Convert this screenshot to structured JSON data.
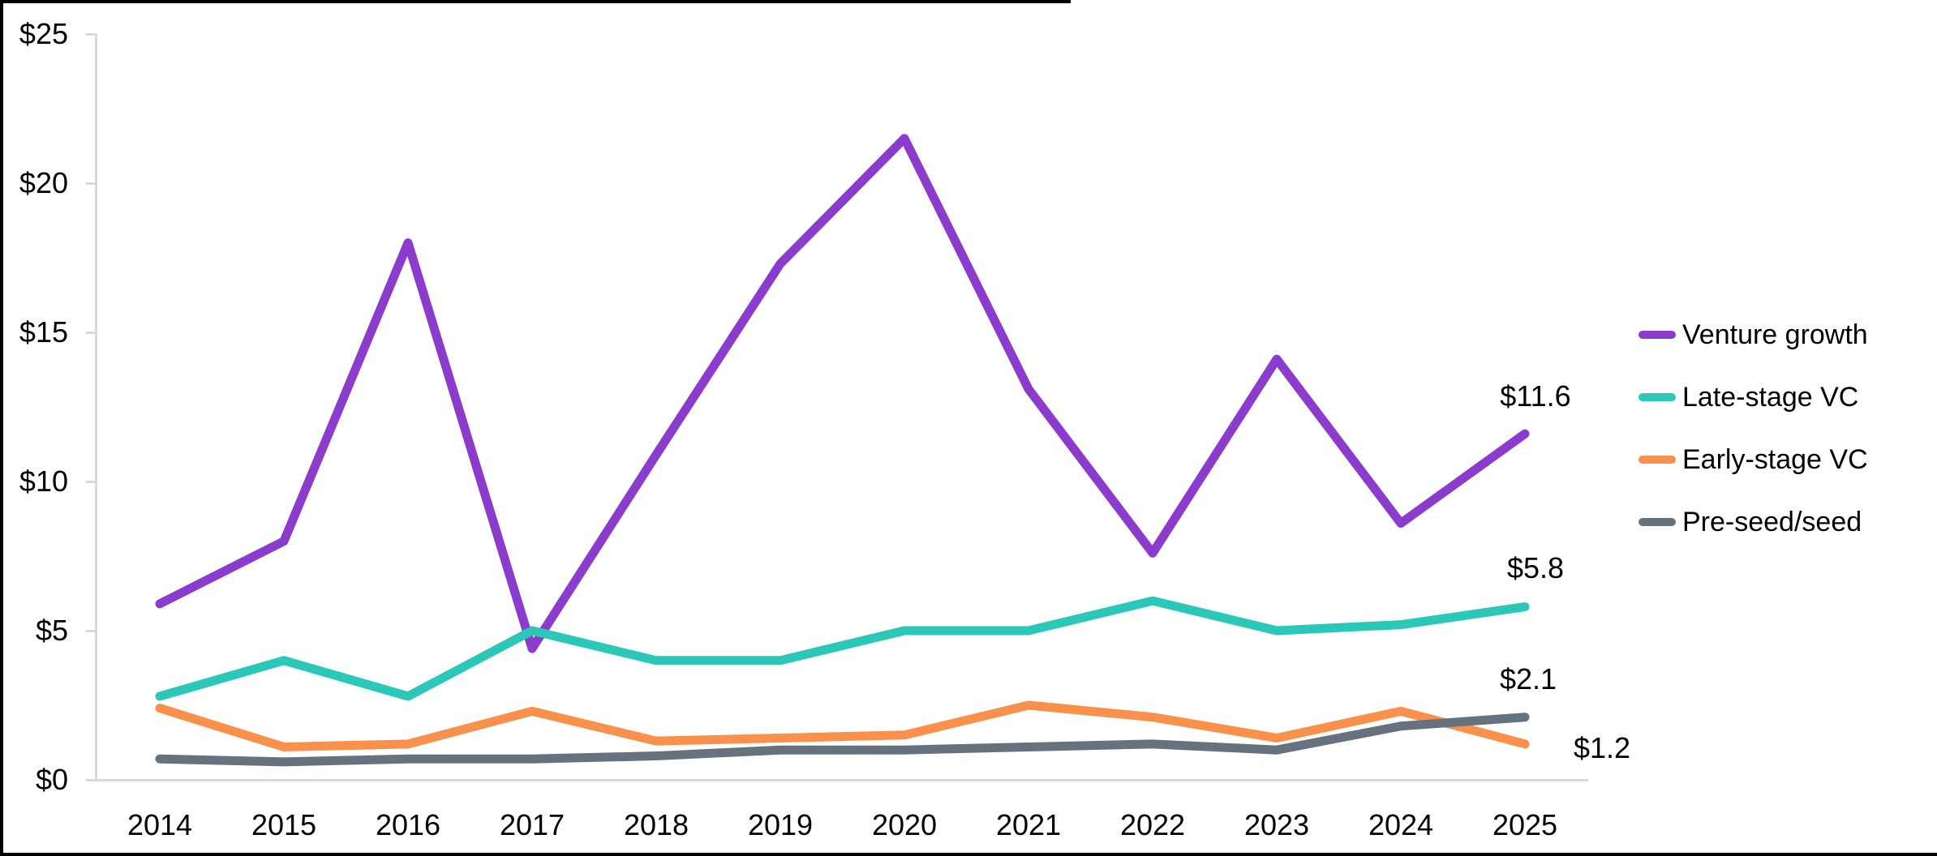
{
  "chart_data": {
    "type": "line",
    "title": "",
    "x": [
      2014,
      2015,
      2016,
      2017,
      2018,
      2019,
      2020,
      2021,
      2022,
      2023,
      2024,
      2025
    ],
    "x_tick_labels": [
      "2014",
      "2015",
      "2016",
      "2017",
      "2018",
      "2019",
      "2020",
      "2021",
      "2022",
      "2023",
      "2024",
      "2025"
    ],
    "y_ticks": [
      {
        "label": "$25",
        "value": 25
      },
      {
        "label": "$20",
        "value": 20
      },
      {
        "label": "$15",
        "value": 15
      },
      {
        "label": "$10",
        "value": 10
      },
      {
        "label": "$5",
        "value": 5
      },
      {
        "label": "$0",
        "value": 0
      }
    ],
    "ylim": [
      0,
      25
    ],
    "grid": false,
    "legend_position": "right",
    "axis_color": "#D9D9D9",
    "text_color": "#000000",
    "series": [
      {
        "name": "Venture growth",
        "color": "#8C3CCD",
        "values": [
          5.9,
          8.0,
          18.0,
          4.4,
          10.9,
          17.3,
          21.5,
          13.1,
          7.6,
          14.1,
          8.6,
          11.6
        ],
        "end_label": "$11.6"
      },
      {
        "name": "Late-stage VC",
        "color": "#2BC7B9",
        "values": [
          2.8,
          4.0,
          2.8,
          5.0,
          4.0,
          4.0,
          5.0,
          5.0,
          6.0,
          5.0,
          5.2,
          5.8
        ],
        "end_label": "$5.8"
      },
      {
        "name": "Early-stage VC",
        "color": "#F9914D",
        "values": [
          2.4,
          1.1,
          1.2,
          2.3,
          1.3,
          1.4,
          1.5,
          2.5,
          2.1,
          1.4,
          2.3,
          1.2
        ],
        "end_label": "$1.2"
      },
      {
        "name": "Pre-seed/seed",
        "color": "#66737F",
        "values": [
          0.7,
          0.6,
          0.7,
          0.7,
          0.8,
          1.0,
          1.0,
          1.1,
          1.2,
          1.0,
          1.8,
          2.1
        ],
        "end_label": "$2.1"
      }
    ]
  }
}
